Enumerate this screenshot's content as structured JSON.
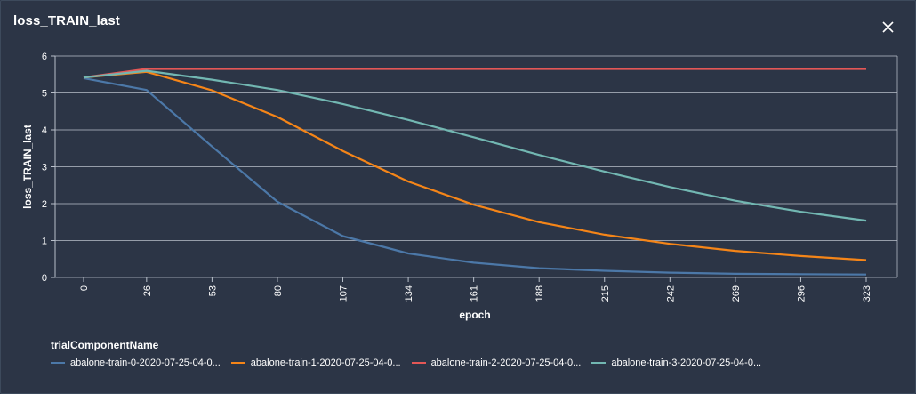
{
  "panel": {
    "title": "loss_TRAIN_last",
    "close_icon": "close-icon"
  },
  "chart_data": {
    "type": "line",
    "xlabel": "epoch",
    "ylabel": "loss_TRAIN_last",
    "ylim": [
      0,
      6
    ],
    "xlim": [
      0,
      323
    ],
    "x_ticks": [
      0,
      26,
      53,
      80,
      107,
      134,
      161,
      188,
      215,
      242,
      269,
      296,
      323
    ],
    "y_ticks": [
      0,
      1,
      2,
      3,
      4,
      5,
      6
    ],
    "grid": true,
    "legend_title": "trialComponentName",
    "legend_position": "bottom",
    "x": [
      0,
      26,
      53,
      80,
      107,
      134,
      161,
      188,
      215,
      242,
      269,
      296,
      323
    ],
    "series": [
      {
        "name": "abalone-train-0-2020-07-25-04-0...",
        "color": "#4c78a8",
        "values": [
          5.4,
          5.08,
          3.55,
          2.05,
          1.12,
          0.65,
          0.4,
          0.25,
          0.18,
          0.13,
          0.1,
          0.09,
          0.08
        ]
      },
      {
        "name": "abalone-train-1-2020-07-25-04-0...",
        "color": "#f58518",
        "values": [
          5.42,
          5.57,
          5.07,
          4.35,
          3.43,
          2.6,
          1.97,
          1.5,
          1.16,
          0.91,
          0.72,
          0.58,
          0.47
        ]
      },
      {
        "name": "abalone-train-2-2020-07-25-04-0...",
        "color": "#e45756",
        "values": [
          5.42,
          5.65,
          5.65,
          5.65,
          5.65,
          5.65,
          5.65,
          5.65,
          5.65,
          5.65,
          5.65,
          5.65,
          5.65
        ]
      },
      {
        "name": "abalone-train-3-2020-07-25-04-0...",
        "color": "#72b7b2",
        "values": [
          5.42,
          5.6,
          5.36,
          5.08,
          4.7,
          4.27,
          3.8,
          3.32,
          2.87,
          2.45,
          2.08,
          1.78,
          1.54
        ]
      }
    ]
  }
}
